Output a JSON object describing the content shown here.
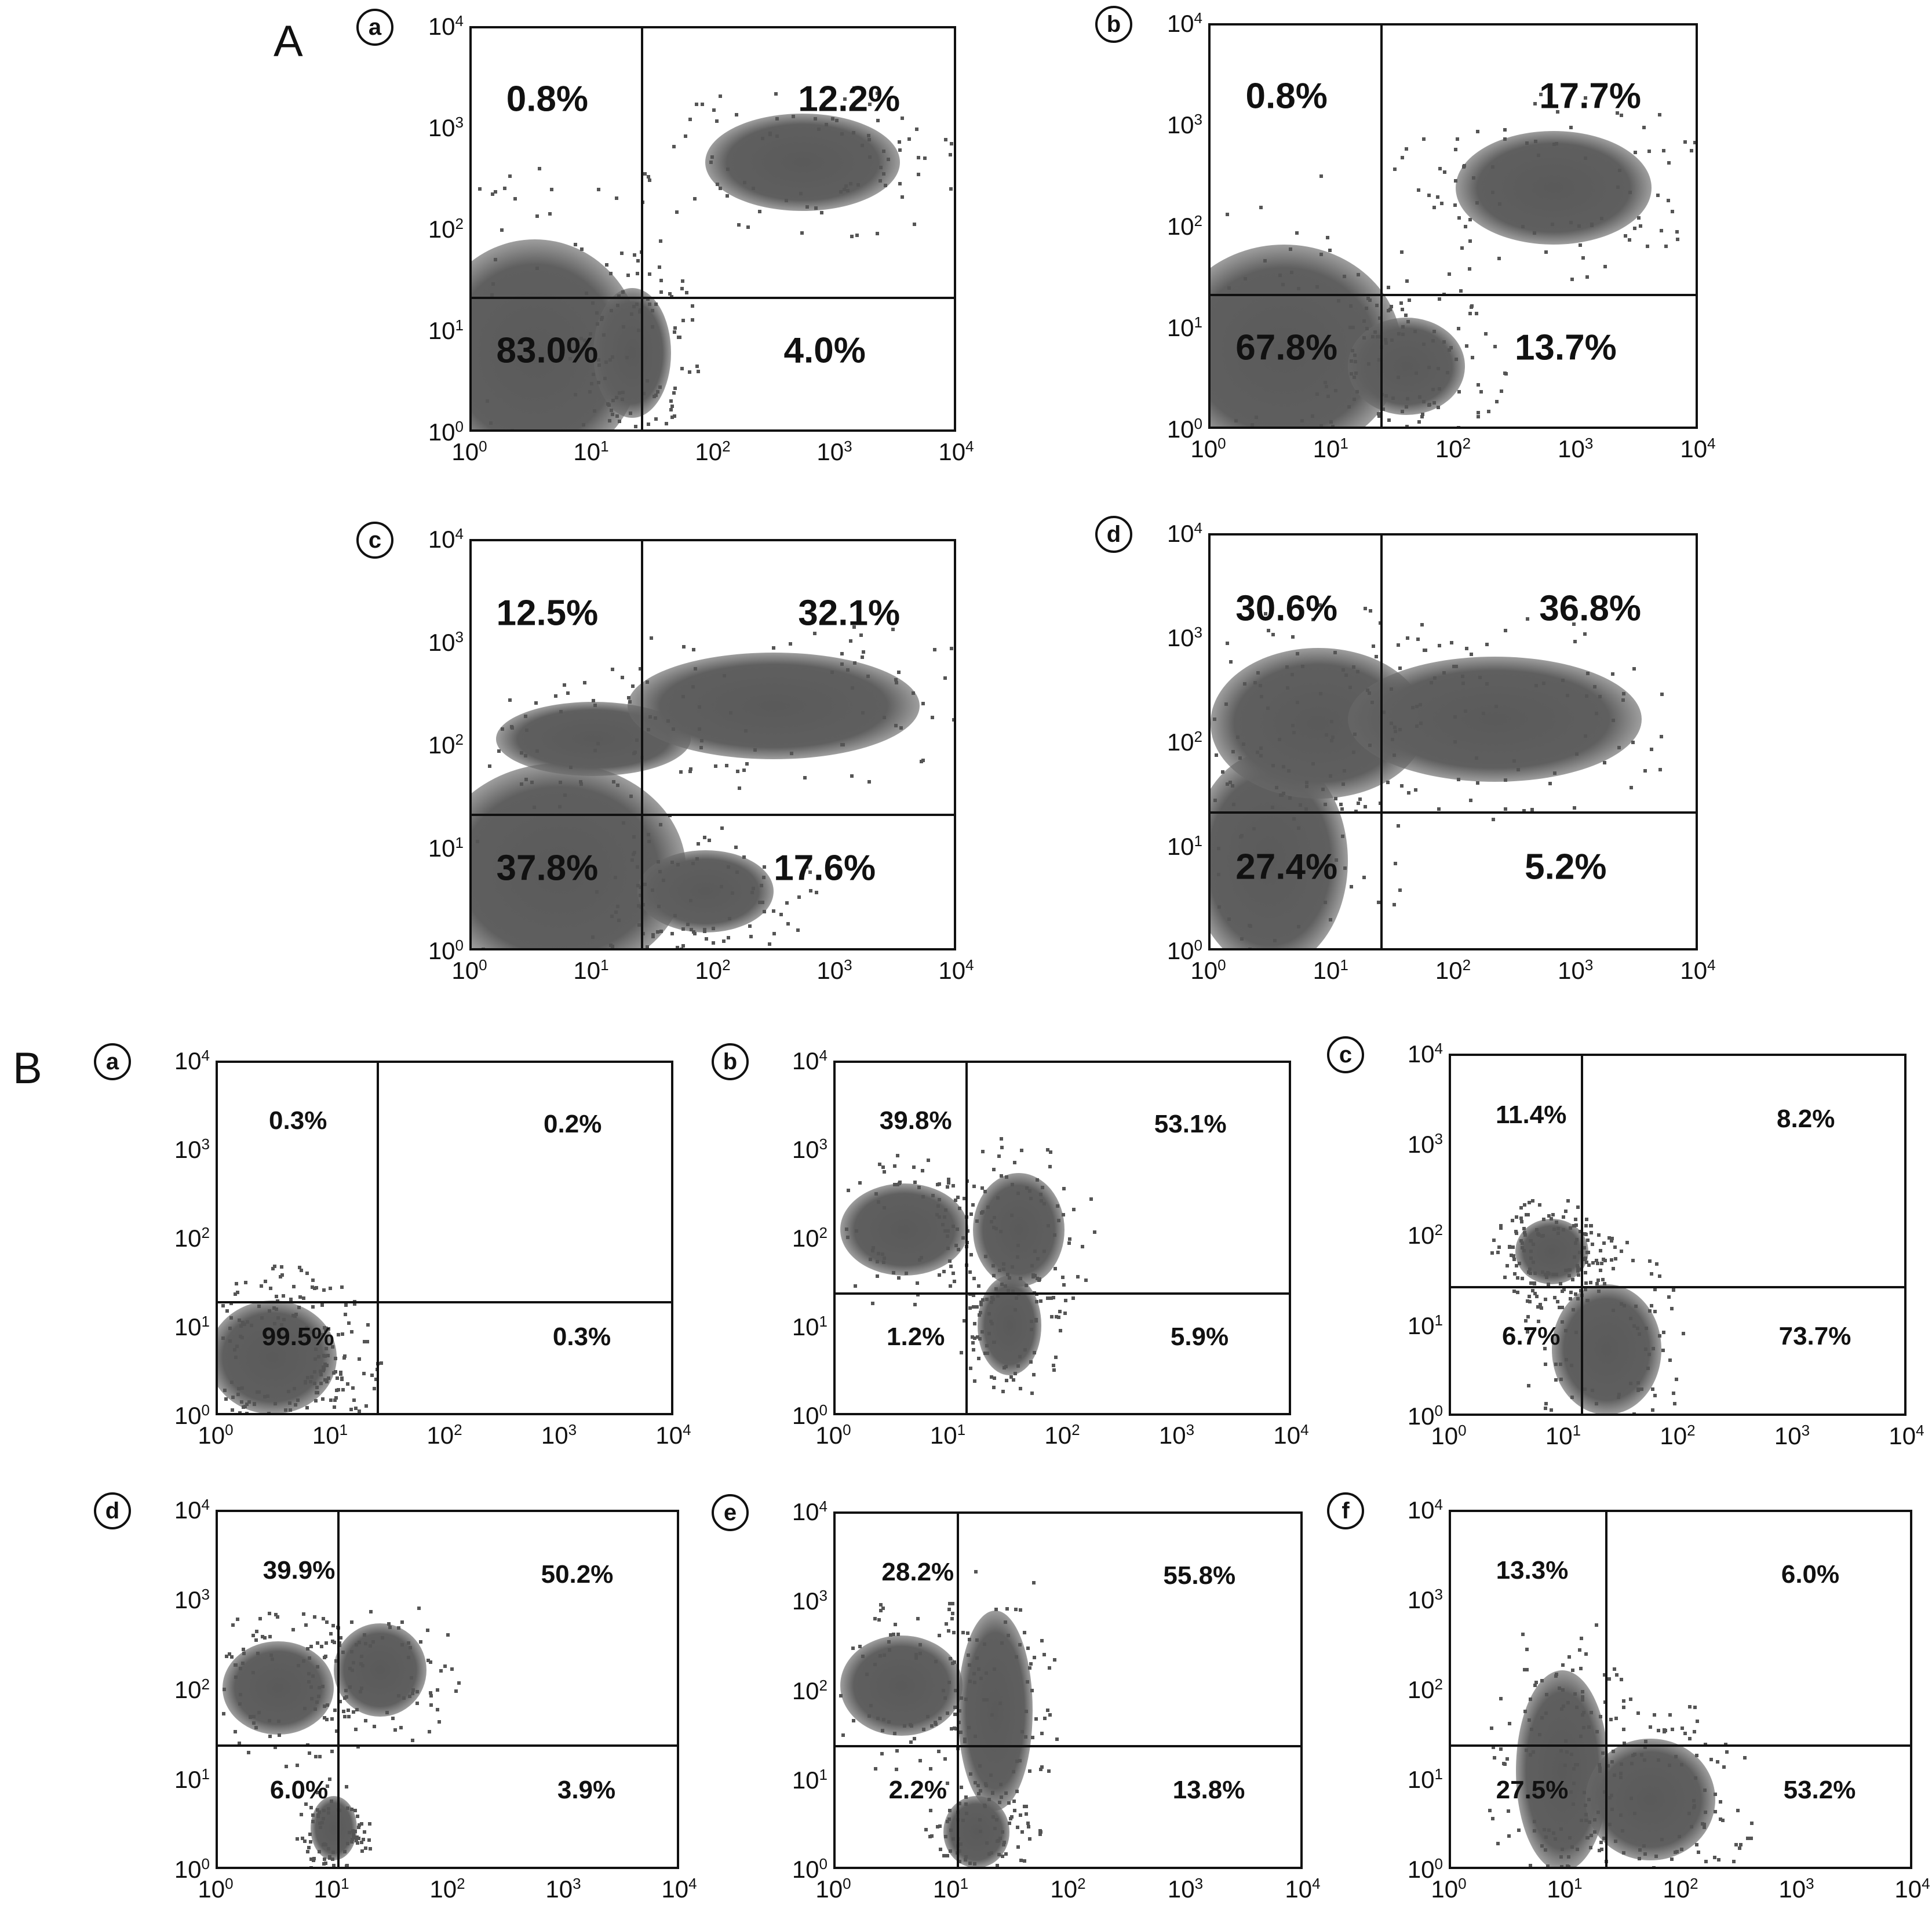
{
  "figure": {
    "sections": [
      {
        "id": "A",
        "label": "A"
      },
      {
        "id": "B",
        "label": "B"
      }
    ],
    "tick_labels": {
      "x": [
        {
          "base": "10",
          "exp": "0"
        },
        {
          "base": "10",
          "exp": "1"
        },
        {
          "base": "10",
          "exp": "2"
        },
        {
          "base": "10",
          "exp": "3"
        },
        {
          "base": "10",
          "exp": "4"
        }
      ],
      "y": [
        {
          "base": "10",
          "exp": "0"
        },
        {
          "base": "10",
          "exp": "1"
        },
        {
          "base": "10",
          "exp": "2"
        },
        {
          "base": "10",
          "exp": "3"
        },
        {
          "base": "10",
          "exp": "4"
        }
      ]
    }
  },
  "chart_data": [
    {
      "type": "scatter",
      "section": "A",
      "panel": "a",
      "x_scale": "log",
      "y_scale": "log",
      "xlim": [
        1,
        10000
      ],
      "ylim": [
        1,
        10000
      ],
      "gate": {
        "x": 25,
        "y": 22
      },
      "quadrants": {
        "upper_left": "0.8%",
        "upper_right": "12.2%",
        "lower_left": "83.0%",
        "lower_right": "4.0%"
      }
    },
    {
      "type": "scatter",
      "section": "A",
      "panel": "b",
      "x_scale": "log",
      "y_scale": "log",
      "xlim": [
        1,
        10000
      ],
      "ylim": [
        1,
        10000
      ],
      "gate": {
        "x": 25,
        "y": 22
      },
      "quadrants": {
        "upper_left": "0.8%",
        "upper_right": "17.7%",
        "lower_left": "67.8%",
        "lower_right": "13.7%"
      }
    },
    {
      "type": "scatter",
      "section": "A",
      "panel": "c",
      "x_scale": "log",
      "y_scale": "log",
      "xlim": [
        1,
        10000
      ],
      "ylim": [
        1,
        10000
      ],
      "gate": {
        "x": 25,
        "y": 22
      },
      "quadrants": {
        "upper_left": "12.5%",
        "upper_right": "32.1%",
        "lower_left": "37.8%",
        "lower_right": "17.6%"
      }
    },
    {
      "type": "scatter",
      "section": "A",
      "panel": "d",
      "x_scale": "log",
      "y_scale": "log",
      "xlim": [
        1,
        10000
      ],
      "ylim": [
        1,
        10000
      ],
      "gate": {
        "x": 25,
        "y": 22
      },
      "quadrants": {
        "upper_left": "30.6%",
        "upper_right": "36.8%",
        "lower_left": "27.4%",
        "lower_right": "5.2%"
      }
    },
    {
      "type": "scatter",
      "section": "B",
      "panel": "a",
      "x_scale": "log",
      "y_scale": "log",
      "xlim": [
        1,
        10000
      ],
      "ylim": [
        1,
        10000
      ],
      "gate": {
        "x": 25,
        "y": 20
      },
      "quadrants": {
        "upper_left": "0.3%",
        "upper_right": "0.2%",
        "lower_left": "99.5%",
        "lower_right": "0.3%"
      }
    },
    {
      "type": "scatter",
      "section": "B",
      "panel": "b",
      "x_scale": "log",
      "y_scale": "log",
      "xlim": [
        1,
        10000
      ],
      "ylim": [
        1,
        10000
      ],
      "gate": {
        "x": 14,
        "y": 25
      },
      "quadrants": {
        "upper_left": "39.8%",
        "upper_right": "53.1%",
        "lower_left": "1.2%",
        "lower_right": "5.9%"
      }
    },
    {
      "type": "scatter",
      "section": "B",
      "panel": "c",
      "x_scale": "log",
      "y_scale": "log",
      "xlim": [
        1,
        10000
      ],
      "ylim": [
        1,
        10000
      ],
      "gate": {
        "x": 14,
        "y": 28
      },
      "quadrants": {
        "upper_left": "11.4%",
        "upper_right": "8.2%",
        "lower_left": "6.7%",
        "lower_right": "73.7%"
      }
    },
    {
      "type": "scatter",
      "section": "B",
      "panel": "d",
      "x_scale": "log",
      "y_scale": "log",
      "xlim": [
        1,
        10000
      ],
      "ylim": [
        1,
        10000
      ],
      "gate": {
        "x": 11,
        "y": 25
      },
      "quadrants": {
        "upper_left": "39.9%",
        "upper_right": "50.2%",
        "lower_left": "6.0%",
        "lower_right": "3.9%"
      }
    },
    {
      "type": "scatter",
      "section": "B",
      "panel": "e",
      "x_scale": "log",
      "y_scale": "log",
      "xlim": [
        1,
        10000
      ],
      "ylim": [
        1,
        10000
      ],
      "gate": {
        "x": 11,
        "y": 25
      },
      "quadrants": {
        "upper_left": "28.2%",
        "upper_right": "55.8%",
        "lower_left": "2.2%",
        "lower_right": "13.8%"
      }
    },
    {
      "type": "scatter",
      "section": "B",
      "panel": "f",
      "x_scale": "log",
      "y_scale": "log",
      "xlim": [
        1,
        10000
      ],
      "ylim": [
        1,
        10000
      ],
      "gate": {
        "x": 22,
        "y": 25
      },
      "quadrants": {
        "upper_left": "13.3%",
        "upper_right": "6.0%",
        "lower_left": "27.5%",
        "lower_right": "53.2%"
      }
    }
  ]
}
